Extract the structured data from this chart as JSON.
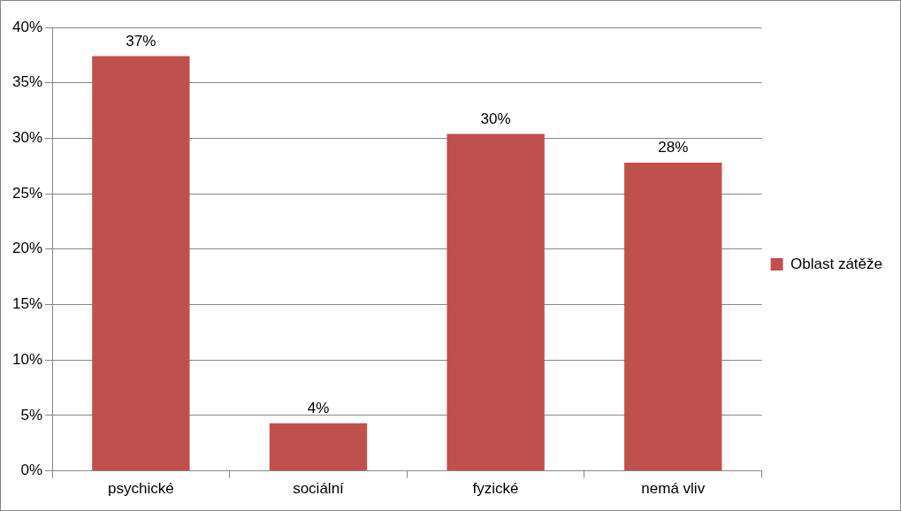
{
  "chart_data": {
    "type": "bar",
    "categories": [
      "psychické",
      "sociální",
      "fyzické",
      "nemá vliv"
    ],
    "series": [
      {
        "name": "Oblast zátěže",
        "color": "#c0504d",
        "values": [
          37.4,
          4.3,
          30.4,
          27.8
        ],
        "value_labels": [
          "37%",
          "4%",
          "30%",
          "28%"
        ]
      }
    ],
    "ylim": [
      0,
      40
    ],
    "yticks": [
      {
        "value": 0,
        "label": "0%"
      },
      {
        "value": 5,
        "label": "5%"
      },
      {
        "value": 10,
        "label": "10%"
      },
      {
        "value": 15,
        "label": "15%"
      },
      {
        "value": 20,
        "label": "20%"
      },
      {
        "value": 25,
        "label": "25%"
      },
      {
        "value": 30,
        "label": "30%"
      },
      {
        "value": 35,
        "label": "35%"
      },
      {
        "value": 40,
        "label": "40%"
      }
    ],
    "grid": "y",
    "legend": "right"
  }
}
